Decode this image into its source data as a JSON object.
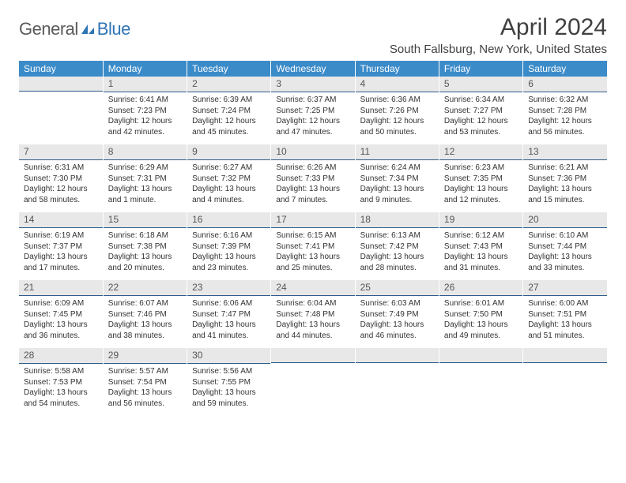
{
  "logo": {
    "text1": "General",
    "text2": "Blue",
    "icon_color": "#2e75b6"
  },
  "title": "April 2024",
  "location": "South Fallsburg, New York, United States",
  "colors": {
    "header_bg": "#3b8bc9",
    "header_fg": "#ffffff",
    "daynum_bg": "#e8e8e8",
    "daynum_border": "#2e5c8a",
    "text": "#333333"
  },
  "weekdays": [
    "Sunday",
    "Monday",
    "Tuesday",
    "Wednesday",
    "Thursday",
    "Friday",
    "Saturday"
  ],
  "weeks": [
    [
      null,
      {
        "n": "1",
        "sr": "6:41 AM",
        "ss": "7:23 PM",
        "dl": "12 hours and 42 minutes."
      },
      {
        "n": "2",
        "sr": "6:39 AM",
        "ss": "7:24 PM",
        "dl": "12 hours and 45 minutes."
      },
      {
        "n": "3",
        "sr": "6:37 AM",
        "ss": "7:25 PM",
        "dl": "12 hours and 47 minutes."
      },
      {
        "n": "4",
        "sr": "6:36 AM",
        "ss": "7:26 PM",
        "dl": "12 hours and 50 minutes."
      },
      {
        "n": "5",
        "sr": "6:34 AM",
        "ss": "7:27 PM",
        "dl": "12 hours and 53 minutes."
      },
      {
        "n": "6",
        "sr": "6:32 AM",
        "ss": "7:28 PM",
        "dl": "12 hours and 56 minutes."
      }
    ],
    [
      {
        "n": "7",
        "sr": "6:31 AM",
        "ss": "7:30 PM",
        "dl": "12 hours and 58 minutes."
      },
      {
        "n": "8",
        "sr": "6:29 AM",
        "ss": "7:31 PM",
        "dl": "13 hours and 1 minute."
      },
      {
        "n": "9",
        "sr": "6:27 AM",
        "ss": "7:32 PM",
        "dl": "13 hours and 4 minutes."
      },
      {
        "n": "10",
        "sr": "6:26 AM",
        "ss": "7:33 PM",
        "dl": "13 hours and 7 minutes."
      },
      {
        "n": "11",
        "sr": "6:24 AM",
        "ss": "7:34 PM",
        "dl": "13 hours and 9 minutes."
      },
      {
        "n": "12",
        "sr": "6:23 AM",
        "ss": "7:35 PM",
        "dl": "13 hours and 12 minutes."
      },
      {
        "n": "13",
        "sr": "6:21 AM",
        "ss": "7:36 PM",
        "dl": "13 hours and 15 minutes."
      }
    ],
    [
      {
        "n": "14",
        "sr": "6:19 AM",
        "ss": "7:37 PM",
        "dl": "13 hours and 17 minutes."
      },
      {
        "n": "15",
        "sr": "6:18 AM",
        "ss": "7:38 PM",
        "dl": "13 hours and 20 minutes."
      },
      {
        "n": "16",
        "sr": "6:16 AM",
        "ss": "7:39 PM",
        "dl": "13 hours and 23 minutes."
      },
      {
        "n": "17",
        "sr": "6:15 AM",
        "ss": "7:41 PM",
        "dl": "13 hours and 25 minutes."
      },
      {
        "n": "18",
        "sr": "6:13 AM",
        "ss": "7:42 PM",
        "dl": "13 hours and 28 minutes."
      },
      {
        "n": "19",
        "sr": "6:12 AM",
        "ss": "7:43 PM",
        "dl": "13 hours and 31 minutes."
      },
      {
        "n": "20",
        "sr": "6:10 AM",
        "ss": "7:44 PM",
        "dl": "13 hours and 33 minutes."
      }
    ],
    [
      {
        "n": "21",
        "sr": "6:09 AM",
        "ss": "7:45 PM",
        "dl": "13 hours and 36 minutes."
      },
      {
        "n": "22",
        "sr": "6:07 AM",
        "ss": "7:46 PM",
        "dl": "13 hours and 38 minutes."
      },
      {
        "n": "23",
        "sr": "6:06 AM",
        "ss": "7:47 PM",
        "dl": "13 hours and 41 minutes."
      },
      {
        "n": "24",
        "sr": "6:04 AM",
        "ss": "7:48 PM",
        "dl": "13 hours and 44 minutes."
      },
      {
        "n": "25",
        "sr": "6:03 AM",
        "ss": "7:49 PM",
        "dl": "13 hours and 46 minutes."
      },
      {
        "n": "26",
        "sr": "6:01 AM",
        "ss": "7:50 PM",
        "dl": "13 hours and 49 minutes."
      },
      {
        "n": "27",
        "sr": "6:00 AM",
        "ss": "7:51 PM",
        "dl": "13 hours and 51 minutes."
      }
    ],
    [
      {
        "n": "28",
        "sr": "5:58 AM",
        "ss": "7:53 PM",
        "dl": "13 hours and 54 minutes."
      },
      {
        "n": "29",
        "sr": "5:57 AM",
        "ss": "7:54 PM",
        "dl": "13 hours and 56 minutes."
      },
      {
        "n": "30",
        "sr": "5:56 AM",
        "ss": "7:55 PM",
        "dl": "13 hours and 59 minutes."
      },
      null,
      null,
      null,
      null
    ]
  ],
  "labels": {
    "sunrise": "Sunrise:",
    "sunset": "Sunset:",
    "daylight": "Daylight:"
  }
}
